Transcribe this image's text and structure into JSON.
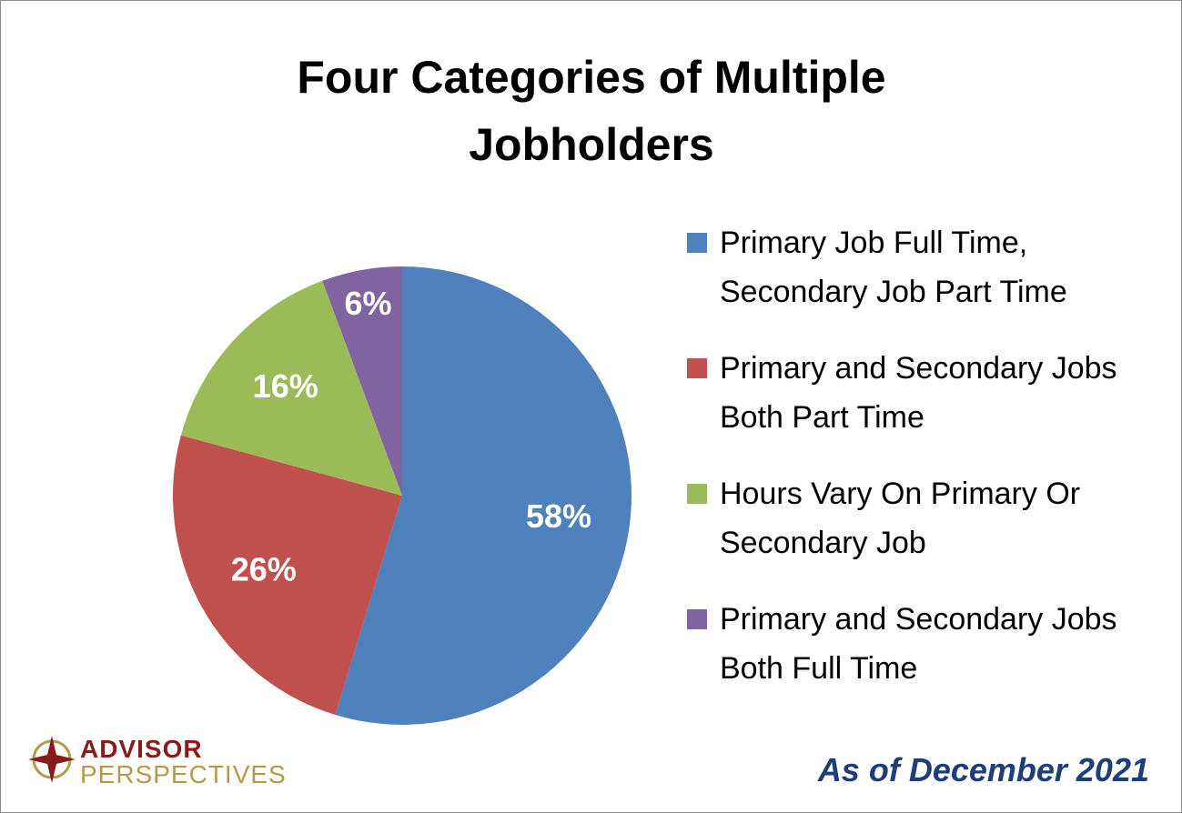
{
  "chart_data": {
    "type": "pie",
    "title": "Four Categories of Multiple Jobholders",
    "categories": [
      "Primary Job Full Time, Secondary Job Part Time",
      "Primary and Secondary Jobs Both Part Time",
      "Hours Vary On Primary Or Secondary Job",
      "Primary and Secondary Jobs Both Full Time"
    ],
    "values": [
      58,
      26,
      16,
      6
    ],
    "value_labels": [
      "58%",
      "26%",
      "16%",
      "6%"
    ],
    "colors": [
      "#4f81bd",
      "#c0504d",
      "#9bbb59",
      "#8064a2"
    ],
    "note": "As of December 2021",
    "logo": [
      "ADVISOR",
      "PERSPECTIVES"
    ]
  }
}
